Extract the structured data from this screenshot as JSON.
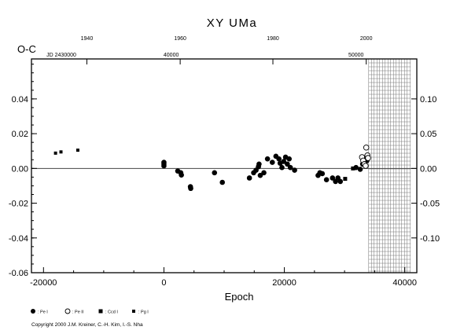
{
  "chart_data": {
    "type": "scatter",
    "title": "XY UMa",
    "ylabel": "O-C",
    "xlabel": "Epoch",
    "xlim": [
      -22000,
      42000
    ],
    "ylim": [
      -0.06,
      0.063
    ],
    "x_ticks": [
      -20000,
      0,
      20000,
      40000
    ],
    "x_tick_labels": [
      "-20000",
      "0",
      "20000",
      "40000"
    ],
    "y_ticks": [
      -0.06,
      -0.04,
      -0.02,
      0.0,
      0.02,
      0.04
    ],
    "y_tick_labels": [
      "-0.06",
      "-0.04",
      "-0.02",
      "0.00",
      "0.02",
      "0.04"
    ],
    "right_axis_ticks": [
      -0.1,
      -0.05,
      0.0,
      0.05,
      0.1
    ],
    "right_axis_tick_labels": [
      "-0.10",
      "-0.05",
      "0.00",
      "0.05",
      "0.10"
    ],
    "right_axis_scale": 0.4,
    "top_year_ticks": [
      {
        "epoch": -12800,
        "label": "1940"
      },
      {
        "epoch": 2700,
        "label": "1960"
      },
      {
        "epoch": 18100,
        "label": "1980"
      },
      {
        "epoch": 33600,
        "label": "2000"
      }
    ],
    "top_jd_ticks": [
      {
        "epoch": -19500,
        "label": "JD 2430000"
      },
      {
        "epoch": 1200,
        "label": "40000"
      },
      {
        "epoch": 31900,
        "label": "50000"
      }
    ],
    "zero_line": true,
    "hatched_region": {
      "x_from": 34000,
      "x_to": 41000
    },
    "series": [
      {
        "name": "Pe I",
        "marker": "filled-circle",
        "points": [
          [
            0,
            0.0035
          ],
          [
            0,
            0.0025
          ],
          [
            0,
            0.0015
          ],
          [
            2300,
            -0.0015
          ],
          [
            2800,
            -0.0025
          ],
          [
            2900,
            -0.0038
          ],
          [
            4400,
            -0.0105
          ],
          [
            4450,
            -0.0115
          ],
          [
            8400,
            -0.0025
          ],
          [
            9700,
            -0.008
          ],
          [
            14200,
            -0.0055
          ],
          [
            14900,
            -0.0025
          ],
          [
            15300,
            -0.001
          ],
          [
            15700,
            0.001
          ],
          [
            15800,
            0.0025
          ],
          [
            16000,
            -0.004
          ],
          [
            16600,
            -0.0025
          ],
          [
            17200,
            0.0055
          ],
          [
            18000,
            0.0035
          ],
          [
            18600,
            0.007
          ],
          [
            19100,
            0.0055
          ],
          [
            19300,
            0.003
          ],
          [
            19600,
            0.0005
          ],
          [
            19900,
            0.004
          ],
          [
            20200,
            0.0065
          ],
          [
            20500,
            0.0025
          ],
          [
            20800,
            0.0055
          ],
          [
            21000,
            0.0005
          ],
          [
            21700,
            -0.001
          ],
          [
            25600,
            -0.004
          ],
          [
            25900,
            -0.0025
          ],
          [
            26300,
            -0.003
          ],
          [
            27000,
            -0.0065
          ],
          [
            28000,
            -0.0055
          ],
          [
            28500,
            -0.0075
          ],
          [
            28900,
            -0.0055
          ],
          [
            29300,
            -0.0075
          ],
          [
            31900,
            0.0005
          ],
          [
            32600,
            -0.0005
          ],
          [
            33000,
            0.0025
          ],
          [
            33200,
            0.004
          ],
          [
            33500,
            0.006
          ],
          [
            33700,
            0.0045
          ]
        ]
      },
      {
        "name": "Pe II",
        "marker": "open-circle",
        "points": [
          [
            32900,
            0.0065
          ],
          [
            33100,
            0.0045
          ],
          [
            33300,
            0.0025
          ],
          [
            33500,
            0.0015
          ],
          [
            33600,
            0.012
          ],
          [
            33800,
            0.0075
          ],
          [
            33900,
            0.006
          ]
        ]
      },
      {
        "name": "Ccd I",
        "marker": "filled-square",
        "points": [
          [
            30100,
            -0.006
          ],
          [
            31400,
            0.0
          ]
        ]
      },
      {
        "name": "Pg I",
        "marker": "filled-square",
        "points": [
          [
            -18000,
            0.0088
          ],
          [
            -17100,
            0.0095
          ],
          [
            -14300,
            0.0105
          ]
        ]
      }
    ],
    "legend": [
      {
        "marker": "filled-circle",
        "label": ": Pe I"
      },
      {
        "marker": "open-circle",
        "label": ": Pe II"
      },
      {
        "marker": "filled-square",
        "label": ": Ccd I"
      },
      {
        "marker": "filled-square-small",
        "label": ": Pg I"
      }
    ],
    "legend_placement": "bottom-left",
    "copyright": "Copyright 2000 J.M. Kreiner, C.-H. Kim, I.-S. Nha"
  }
}
